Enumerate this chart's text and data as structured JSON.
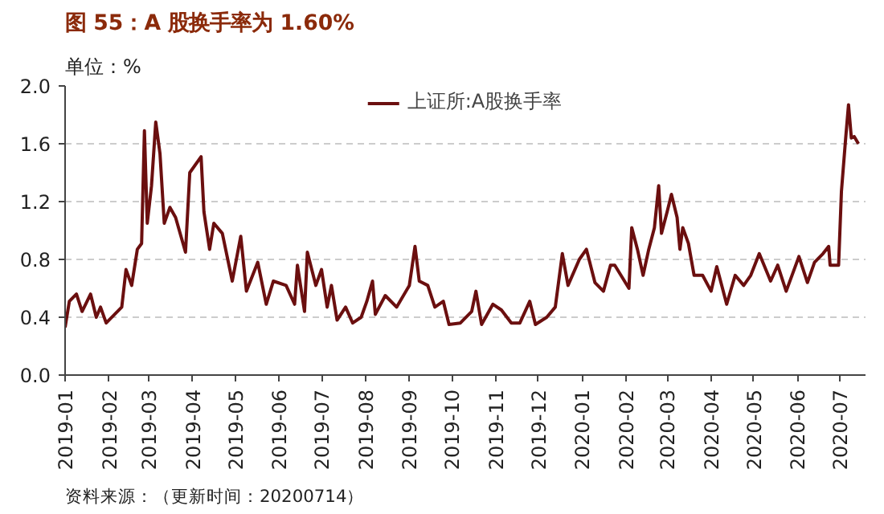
{
  "chart_data": {
    "type": "line",
    "title": "图 55：A 股换手率为 1.60%",
    "ylabel": "单位：%",
    "annotations": [
      "资料来源：（更新时间：20200714）"
    ],
    "xlim": [
      "2019-01-01",
      "2020-07-19"
    ],
    "xticks": [
      {
        "value": "2019-01-01",
        "label": "2019-01"
      },
      {
        "value": "2019-02-01",
        "label": "2019-02"
      },
      {
        "value": "2019-03-01",
        "label": "2019-03"
      },
      {
        "value": "2019-04-01",
        "label": "2019-04"
      },
      {
        "value": "2019-05-01",
        "label": "2019-05"
      },
      {
        "value": "2019-06-01",
        "label": "2019-06"
      },
      {
        "value": "2019-07-01",
        "label": "2019-07"
      },
      {
        "value": "2019-08-01",
        "label": "2019-08"
      },
      {
        "value": "2019-09-01",
        "label": "2019-09"
      },
      {
        "value": "2019-10-01",
        "label": "2019-10"
      },
      {
        "value": "2019-11-01",
        "label": "2019-11"
      },
      {
        "value": "2019-12-01",
        "label": "2019-12"
      },
      {
        "value": "2020-01-01",
        "label": "2020-01"
      },
      {
        "value": "2020-02-01",
        "label": "2020-02"
      },
      {
        "value": "2020-03-01",
        "label": "2020-03"
      },
      {
        "value": "2020-04-01",
        "label": "2020-04"
      },
      {
        "value": "2020-05-01",
        "label": "2020-05"
      },
      {
        "value": "2020-06-01",
        "label": "2020-06"
      },
      {
        "value": "2020-07-01",
        "label": "2020-07"
      }
    ],
    "ylim": [
      0,
      2.0
    ],
    "yticks": [
      {
        "value": 0,
        "label": "0.0"
      },
      {
        "value": 0.4,
        "label": "0.4"
      },
      {
        "value": 0.8,
        "label": "0.8"
      },
      {
        "value": 1.2,
        "label": "1.2"
      },
      {
        "value": 1.6,
        "label": "1.6"
      },
      {
        "value": 2.0,
        "label": "2.0"
      }
    ],
    "grid": "y",
    "legend": "top",
    "line_style": "solid",
    "series": [
      {
        "name": "上证所:A股换手率",
        "color": "#6b0f0f",
        "x": [
          "2019-01-01",
          "2019-01-04",
          "2019-01-09",
          "2019-01-13",
          "2019-01-19",
          "2019-01-23",
          "2019-01-26",
          "2019-01-30",
          "2019-02-10",
          "2019-02-13",
          "2019-02-17",
          "2019-02-21",
          "2019-02-24",
          "2019-02-26",
          "2019-02-28",
          "2019-03-03",
          "2019-03-06",
          "2019-03-09",
          "2019-03-12",
          "2019-03-16",
          "2019-03-20",
          "2019-03-27",
          "2019-03-30",
          "2019-04-07",
          "2019-04-09",
          "2019-04-13",
          "2019-04-16",
          "2019-04-22",
          "2019-04-29",
          "2019-05-05",
          "2019-05-09",
          "2019-05-17",
          "2019-05-23",
          "2019-05-28",
          "2019-06-06",
          "2019-06-12",
          "2019-06-14",
          "2019-06-19",
          "2019-06-21",
          "2019-06-27",
          "2019-07-01",
          "2019-07-05",
          "2019-07-08",
          "2019-07-12",
          "2019-07-18",
          "2019-07-23",
          "2019-07-29",
          "2019-08-02",
          "2019-08-06",
          "2019-08-08",
          "2019-08-15",
          "2019-08-23",
          "2019-09-01",
          "2019-09-05",
          "2019-09-08",
          "2019-09-14",
          "2019-09-19",
          "2019-09-25",
          "2019-09-29",
          "2019-10-07",
          "2019-10-15",
          "2019-10-18",
          "2019-10-22",
          "2019-10-30",
          "2019-11-05",
          "2019-11-12",
          "2019-11-18",
          "2019-11-25",
          "2019-11-29",
          "2019-12-07",
          "2019-12-13",
          "2019-12-18",
          "2019-12-22",
          "2019-12-30",
          "2020-01-04",
          "2020-01-10",
          "2020-01-16",
          "2020-01-21",
          "2020-01-24",
          "2020-02-03",
          "2020-02-05",
          "2020-02-09",
          "2020-02-13",
          "2020-02-17",
          "2020-02-21",
          "2020-02-24",
          "2020-02-26",
          "2020-03-01",
          "2020-03-04",
          "2020-03-08",
          "2020-03-10",
          "2020-03-12",
          "2020-03-16",
          "2020-03-20",
          "2020-03-26",
          "2020-04-01",
          "2020-04-05",
          "2020-04-12",
          "2020-04-18",
          "2020-04-24",
          "2020-04-29",
          "2020-05-05",
          "2020-05-13",
          "2020-05-18",
          "2020-05-24",
          "2020-06-02",
          "2020-06-08",
          "2020-06-13",
          "2020-06-19",
          "2020-06-23",
          "2020-06-24",
          "2020-06-30",
          "2020-07-02",
          "2020-07-05",
          "2020-07-07",
          "2020-07-09",
          "2020-07-11",
          "2020-07-14"
        ],
        "values": [
          0.33,
          0.51,
          0.56,
          0.44,
          0.56,
          0.4,
          0.47,
          0.36,
          0.47,
          0.73,
          0.62,
          0.87,
          0.91,
          1.69,
          1.05,
          1.31,
          1.75,
          1.53,
          1.05,
          1.16,
          1.09,
          0.85,
          1.4,
          1.51,
          1.13,
          0.87,
          1.05,
          0.98,
          0.65,
          0.96,
          0.58,
          0.78,
          0.49,
          0.65,
          0.62,
          0.49,
          0.76,
          0.44,
          0.85,
          0.62,
          0.73,
          0.47,
          0.62,
          0.38,
          0.47,
          0.36,
          0.4,
          0.51,
          0.65,
          0.42,
          0.55,
          0.47,
          0.62,
          0.89,
          0.65,
          0.62,
          0.47,
          0.51,
          0.35,
          0.36,
          0.44,
          0.58,
          0.35,
          0.49,
          0.45,
          0.36,
          0.36,
          0.51,
          0.35,
          0.4,
          0.47,
          0.84,
          0.62,
          0.8,
          0.87,
          0.64,
          0.58,
          0.76,
          0.76,
          0.6,
          1.02,
          0.87,
          0.69,
          0.87,
          1.02,
          1.31,
          0.98,
          1.13,
          1.25,
          1.09,
          0.87,
          1.02,
          0.91,
          0.69,
          0.69,
          0.58,
          0.75,
          0.49,
          0.69,
          0.62,
          0.69,
          0.84,
          0.65,
          0.76,
          0.58,
          0.82,
          0.64,
          0.78,
          0.84,
          0.89,
          0.76,
          0.76,
          1.27,
          1.64,
          1.87,
          1.64,
          1.65,
          1.6
        ]
      }
    ]
  }
}
